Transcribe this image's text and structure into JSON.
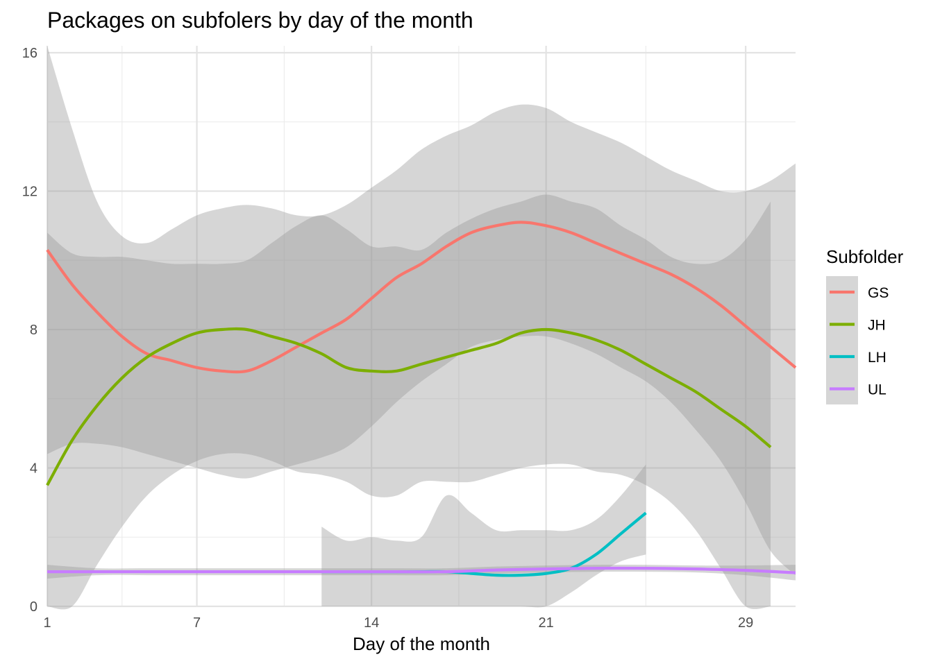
{
  "chart_data": {
    "type": "line",
    "title": "Packages on subfolers by day of the month",
    "xlabel": "Day of the month",
    "ylabel": "",
    "xlim": [
      1,
      31
    ],
    "ylim": [
      0,
      16.2
    ],
    "x_ticks": [
      1,
      7,
      14,
      21,
      29
    ],
    "x_tick_labels": [
      "1",
      "7",
      "14",
      "21",
      "29"
    ],
    "y_ticks": [
      0,
      4,
      8,
      12,
      16
    ],
    "y_tick_labels": [
      "0",
      "4",
      "8",
      "12",
      "16"
    ],
    "x_minor": [
      4,
      10.5,
      17.5,
      25
    ],
    "y_minor": [
      2,
      6,
      10,
      14
    ],
    "grid": true,
    "legend": {
      "title": "Subfolder",
      "position": "right"
    },
    "series": [
      {
        "name": "GS",
        "color": "#F8766D",
        "x": [
          1,
          2,
          3,
          4,
          5,
          6,
          7,
          8,
          9,
          10,
          11,
          12,
          13,
          14,
          15,
          16,
          17,
          18,
          19,
          20,
          21,
          22,
          23,
          24,
          25,
          26,
          27,
          28,
          29,
          30,
          31
        ],
        "y": [
          10.3,
          9.3,
          8.5,
          7.8,
          7.3,
          7.1,
          6.9,
          6.8,
          6.8,
          7.1,
          7.5,
          7.9,
          8.3,
          8.9,
          9.5,
          9.9,
          10.4,
          10.8,
          11.0,
          11.1,
          11.0,
          10.8,
          10.5,
          10.2,
          9.9,
          9.6,
          9.2,
          8.7,
          8.1,
          7.5,
          6.9
        ],
        "ci_low": [
          4.4,
          4.7,
          4.7,
          4.6,
          4.4,
          4.2,
          4.0,
          3.8,
          3.7,
          3.9,
          4.1,
          4.3,
          4.6,
          5.2,
          5.9,
          6.5,
          7.0,
          7.5,
          7.7,
          7.8,
          7.8,
          7.6,
          7.3,
          6.9,
          6.5,
          5.9,
          5.1,
          4.2,
          3.0,
          1.6,
          0.9
        ],
        "ci_high": [
          16.2,
          13.8,
          11.7,
          10.7,
          10.5,
          10.9,
          11.3,
          11.5,
          11.6,
          11.5,
          11.3,
          11.3,
          11.6,
          12.1,
          12.6,
          13.2,
          13.6,
          13.9,
          14.3,
          14.5,
          14.4,
          14.0,
          13.7,
          13.4,
          13.0,
          12.6,
          12.3,
          12.0,
          12.0,
          12.3,
          12.8
        ]
      },
      {
        "name": "JH",
        "color": "#7CAE00",
        "x": [
          1,
          2,
          3,
          4,
          5,
          6,
          7,
          8,
          9,
          10,
          11,
          12,
          13,
          14,
          15,
          16,
          17,
          18,
          19,
          20,
          21,
          22,
          23,
          24,
          25,
          26,
          27,
          28,
          29,
          30
        ],
        "y": [
          3.5,
          4.8,
          5.8,
          6.6,
          7.2,
          7.6,
          7.9,
          8.0,
          8.0,
          7.8,
          7.6,
          7.3,
          6.9,
          6.8,
          6.8,
          7.0,
          7.2,
          7.4,
          7.6,
          7.9,
          8.0,
          7.9,
          7.7,
          7.4,
          7.0,
          6.6,
          6.2,
          5.7,
          5.2,
          4.6
        ],
        "ci_low": [
          0.0,
          0.0,
          1.2,
          2.3,
          3.2,
          3.8,
          4.2,
          4.4,
          4.4,
          4.2,
          3.9,
          3.8,
          3.6,
          3.2,
          3.2,
          3.6,
          3.6,
          3.6,
          3.8,
          4.0,
          4.1,
          4.1,
          3.9,
          3.8,
          3.5,
          3.0,
          2.2,
          1.1,
          0.0,
          0.0
        ],
        "ci_high": [
          10.8,
          10.2,
          10.1,
          10.1,
          10.0,
          9.9,
          9.9,
          9.9,
          10.0,
          10.5,
          11.0,
          11.3,
          10.9,
          10.4,
          10.4,
          10.3,
          10.8,
          11.2,
          11.5,
          11.7,
          11.9,
          11.7,
          11.5,
          11.0,
          10.6,
          10.1,
          9.9,
          10.0,
          10.6,
          11.7
        ]
      },
      {
        "name": "LH",
        "color": "#00BFC4",
        "x": [
          12,
          13,
          14,
          15,
          16,
          17,
          18,
          19,
          20,
          21,
          22,
          23,
          24,
          25
        ],
        "y": [
          1.0,
          1.0,
          1.0,
          1.0,
          1.0,
          1.0,
          0.95,
          0.9,
          0.9,
          0.95,
          1.1,
          1.5,
          2.1,
          2.7
        ],
        "ci_low": [
          0.0,
          0.0,
          0.0,
          0.0,
          0.0,
          0.0,
          0.0,
          0.0,
          0.0,
          0.0,
          0.4,
          0.9,
          1.3,
          1.5
        ],
        "ci_high": [
          2.3,
          1.9,
          2.0,
          1.9,
          2.0,
          3.2,
          2.7,
          2.2,
          2.2,
          2.2,
          2.2,
          2.5,
          3.2,
          4.1
        ]
      },
      {
        "name": "UL",
        "color": "#C77CFF",
        "x": [
          1,
          3,
          5,
          7,
          9,
          11,
          13,
          15,
          17,
          19,
          21,
          23,
          25,
          27,
          29,
          31
        ],
        "y": [
          1.0,
          1.0,
          1.0,
          1.0,
          1.0,
          1.0,
          1.0,
          1.0,
          1.0,
          1.05,
          1.08,
          1.1,
          1.1,
          1.08,
          1.04,
          0.97
        ],
        "ci_low": [
          0.8,
          0.9,
          0.9,
          0.9,
          0.9,
          0.9,
          0.9,
          0.9,
          0.9,
          0.95,
          0.98,
          1.0,
          1.0,
          0.98,
          0.9,
          0.75
        ],
        "ci_high": [
          1.2,
          1.1,
          1.1,
          1.1,
          1.1,
          1.1,
          1.1,
          1.1,
          1.1,
          1.15,
          1.18,
          1.2,
          1.2,
          1.18,
          1.18,
          1.2
        ]
      }
    ]
  }
}
